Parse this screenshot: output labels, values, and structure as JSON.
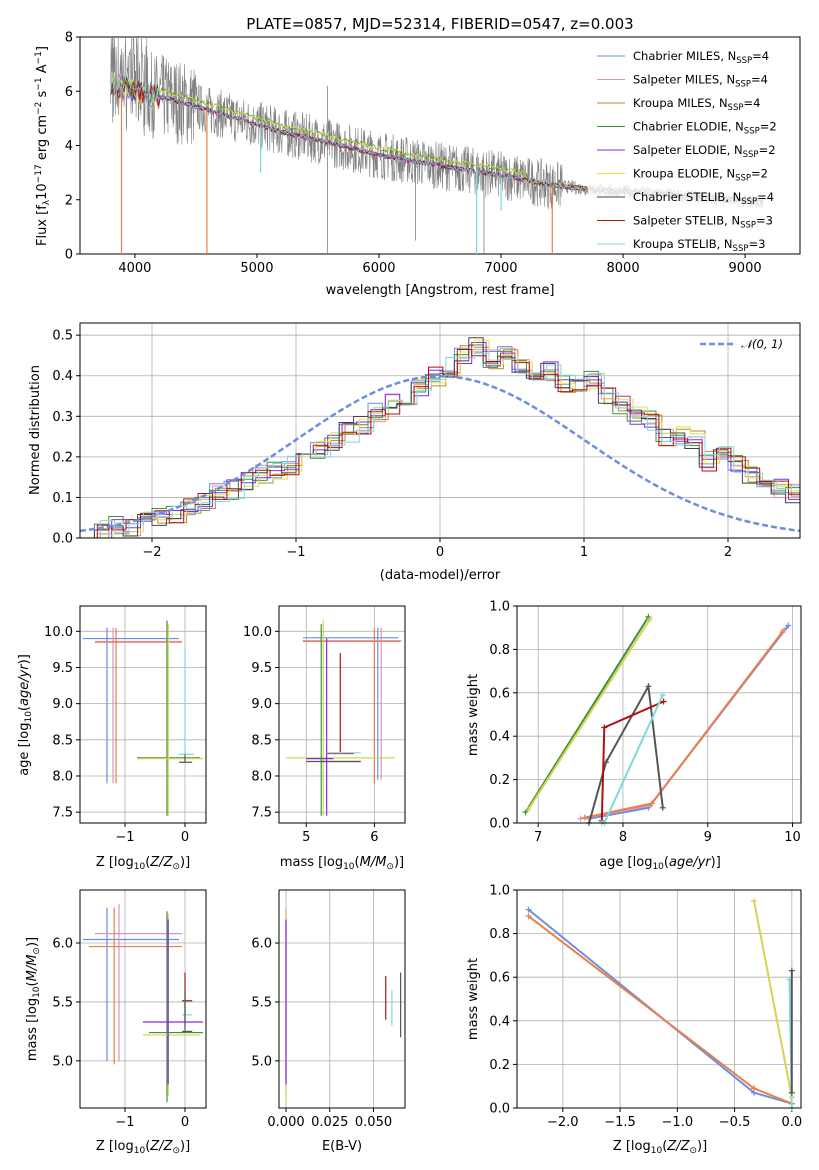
{
  "chart_data": [
    {
      "type": "line",
      "title": "PLATE=0857, MJD=52314, FIBERID=0547, z=0.003",
      "xlabel": "wavelength [Angstrom, rest frame]",
      "ylabel": "Flux [f_λ 10^-17 erg cm^-2 s^-1 A^-1]",
      "xlim": [
        3550,
        9450
      ],
      "ylim": [
        0,
        8
      ],
      "xticks": [
        "4000",
        "5000",
        "6000",
        "7000",
        "8000",
        "9000"
      ],
      "yticks": [
        "0",
        "2",
        "4",
        "6",
        "8"
      ],
      "grid": false,
      "legend_position": "top-right",
      "series": [
        {
          "name": "Chabrier MILES, N_SSP=4",
          "color": "#6b8ee0"
        },
        {
          "name": "Salpeter MILES, N_SSP=4",
          "color": "#e08fc0"
        },
        {
          "name": "Kroupa MILES, N_SSP=4",
          "color": "#b98a2a"
        },
        {
          "name": "Chabrier ELODIE, N_SSP=2",
          "color": "#3f8f3f"
        },
        {
          "name": "Salpeter ELODIE, N_SSP=2",
          "color": "#8a2be2"
        },
        {
          "name": "Kroupa ELODIE, N_SSP=2",
          "color": "#e6e040"
        },
        {
          "name": "Chabrier STELIB, N_SSP=4",
          "color": "#444444"
        },
        {
          "name": "Salpeter STELIB, N_SSP=3",
          "color": "#b01010"
        },
        {
          "name": "Kroupa STELIB, N_SSP=3",
          "color": "#7fd8dc"
        }
      ],
      "data_color": "#808080",
      "continuum": {
        "x": [
          3800,
          4000,
          4300,
          4600,
          4900,
          5200,
          5600,
          6000,
          6500,
          7000,
          7400,
          7800,
          8200,
          8600,
          9000,
          9150
        ],
        "y": [
          6.3,
          6.0,
          5.7,
          5.3,
          4.9,
          4.5,
          4.1,
          3.65,
          3.25,
          2.9,
          2.55,
          2.35,
          2.25,
          2.1,
          1.95,
          1.9
        ]
      }
    },
    {
      "type": "line",
      "xlabel": "(data-model)/error",
      "ylabel": "Normed distribution",
      "xlim": [
        -2.5,
        2.5
      ],
      "ylim": [
        0,
        0.53
      ],
      "xticks": [
        "−2",
        "−1",
        "0",
        "1",
        "2"
      ],
      "yticks": [
        "0.0",
        "0.1",
        "0.2",
        "0.3",
        "0.4",
        "0.5"
      ],
      "grid": true,
      "legend_position": "top-right",
      "gaussian_label": "𝒩(0, 1)",
      "gaussian_color": "#6b8ee0",
      "histogram": {
        "bin_width": 0.1,
        "x_start": -2.5,
        "values": [
          0.02,
          0.02,
          0.03,
          0.03,
          0.04,
          0.05,
          0.06,
          0.08,
          0.09,
          0.11,
          0.12,
          0.14,
          0.16,
          0.17,
          0.18,
          0.21,
          0.22,
          0.24,
          0.26,
          0.28,
          0.31,
          0.33,
          0.34,
          0.37,
          0.4,
          0.42,
          0.45,
          0.47,
          0.44,
          0.46,
          0.43,
          0.4,
          0.41,
          0.38,
          0.37,
          0.39,
          0.35,
          0.33,
          0.3,
          0.29,
          0.25,
          0.25,
          0.24,
          0.19,
          0.21,
          0.18,
          0.16,
          0.13,
          0.12,
          0.11,
          0.09,
          0.08,
          0.07,
          0.06,
          0.05,
          0.04,
          0.035,
          0.03,
          0.025,
          0.02,
          0.02,
          0.02,
          0.02,
          0.02,
          0.02,
          0.02,
          0.02,
          0.02,
          0.02,
          0.02
        ]
      }
    },
    {
      "type": "scatter",
      "xlabel": "Z [log10(Z/Z⊙)]",
      "ylabel": "age  [log10(age/yr)]",
      "xlim": [
        -1.75,
        0.35
      ],
      "ylim": [
        7.35,
        10.35
      ],
      "xticks": [
        "−1",
        "0"
      ],
      "yticks": [
        "7.5",
        "8.0",
        "8.5",
        "9.0",
        "9.5",
        "10.0"
      ],
      "grid": true
    },
    {
      "type": "scatter",
      "xlabel": "mass [log10(M/M⊙)]",
      "ylabel": "",
      "xlim": [
        4.6,
        6.45
      ],
      "ylim": [
        7.35,
        10.35
      ],
      "xticks": [
        "5",
        "6"
      ],
      "yticks": [
        "7.5",
        "8.0",
        "8.5",
        "9.0",
        "9.5",
        "10.0"
      ],
      "grid": true
    },
    {
      "type": "line",
      "xlabel": "age  [log10(age/yr)]",
      "ylabel": "mass weight",
      "xlim": [
        6.75,
        10.1
      ],
      "ylim": [
        0,
        1.0
      ],
      "xticks": [
        "7",
        "8",
        "9",
        "10"
      ],
      "yticks": [
        "0.0",
        "0.2",
        "0.4",
        "0.6",
        "0.8",
        "1.0"
      ],
      "grid": true,
      "series": [
        {
          "name": "Chabrier MILES",
          "color": "#6b8ee0",
          "x": [
            7.6,
            8.3,
            9.95
          ],
          "y": [
            0.02,
            0.07,
            0.91
          ]
        },
        {
          "name": "Salpeter MILES",
          "color": "#e08fc0",
          "x": [
            7.5,
            8.32,
            9.9
          ],
          "y": [
            0.02,
            0.08,
            0.89
          ]
        },
        {
          "name": "Kroupa MILES",
          "color": "#e8804a",
          "x": [
            7.55,
            8.34,
            9.88
          ],
          "y": [
            0.025,
            0.09,
            0.88
          ]
        },
        {
          "name": "Chabrier ELODIE",
          "color": "#3f8f3f",
          "x": [
            6.85,
            8.3
          ],
          "y": [
            0.05,
            0.95
          ]
        },
        {
          "name": "Kroupa ELODIE",
          "color": "#d4d454",
          "x": [
            6.88,
            8.32
          ],
          "y": [
            0.06,
            0.94
          ]
        },
        {
          "name": "Chabrier STELIB",
          "color": "#555555",
          "x": [
            7.6,
            7.8,
            8.3,
            8.47
          ],
          "y": [
            0.0,
            0.28,
            0.63,
            0.07
          ]
        },
        {
          "name": "Salpeter STELIB",
          "color": "#b01010",
          "x": [
            7.75,
            7.78,
            8.48
          ],
          "y": [
            0.01,
            0.44,
            0.56
          ]
        },
        {
          "name": "Kroupa STELIB",
          "color": "#7fd8dc",
          "x": [
            7.75,
            7.78,
            8.47
          ],
          "y": [
            0.0,
            0.0,
            0.59
          ]
        }
      ]
    },
    {
      "type": "scatter",
      "xlabel": "Z [log10(Z/Z⊙)]",
      "ylabel": "mass [log10(M/M⊙)]",
      "xlim": [
        -1.75,
        0.35
      ],
      "ylim": [
        4.6,
        6.45
      ],
      "xticks": [
        "−1",
        "0"
      ],
      "yticks": [
        "5.0",
        "5.5",
        "6.0"
      ],
      "grid": true
    },
    {
      "type": "scatter",
      "xlabel": "E(B-V)",
      "ylabel": "",
      "xlim": [
        -0.004,
        0.068
      ],
      "ylim": [
        4.6,
        6.45
      ],
      "xticks": [
        "0.000",
        "0.025",
        "0.050"
      ],
      "yticks": [
        "5.0",
        "5.5",
        "6.0"
      ],
      "grid": true
    },
    {
      "type": "line",
      "xlabel": "Z [log10(Z/Z⊙)]",
      "ylabel": "mass weight",
      "xlim": [
        -2.4,
        0.08
      ],
      "ylim": [
        0,
        1.0
      ],
      "xticks": [
        "−2.0",
        "−1.5",
        "−1.0",
        "−0.5",
        "0.0"
      ],
      "yticks": [
        "0.0",
        "0.2",
        "0.4",
        "0.6",
        "0.8",
        "1.0"
      ],
      "grid": true,
      "series": [
        {
          "name": "Chabrier MILES",
          "color": "#6b8ee0",
          "x": [
            -2.3,
            -0.33,
            0.0
          ],
          "y": [
            0.91,
            0.07,
            0.02
          ]
        },
        {
          "name": "Kroupa MILES",
          "color": "#e8804a",
          "x": [
            -2.3,
            -0.33,
            0.0
          ],
          "y": [
            0.88,
            0.09,
            0.02
          ]
        },
        {
          "name": "Chabrier ELODIE",
          "color": "#d4d454",
          "x": [
            -0.33,
            0.0
          ],
          "y": [
            0.95,
            0.05
          ]
        },
        {
          "name": "Kroupa STELIB",
          "color": "#7fd8dc",
          "x": [
            -0.02,
            0.0
          ],
          "y": [
            0.59,
            0.0
          ]
        },
        {
          "name": "Chabrier STELIB",
          "color": "#555555",
          "x": [
            0.0,
            0.0
          ],
          "y": [
            0.63,
            0.07
          ]
        }
      ]
    }
  ],
  "text": {
    "title": "PLATE=0857, MJD=52314, FIBERID=0547, z=0.003",
    "p1_xlabel": "wavelength [Angstrom, rest frame]",
    "p2_xlabel": "(data-model)/error",
    "p2_ylabel": "Normed distribution",
    "p3_ylabel": "age  [log",
    "p5_ylabel": "mass weight",
    "p7_xlabel": "E(B-V)",
    "p8_ylabel": "mass weight"
  }
}
